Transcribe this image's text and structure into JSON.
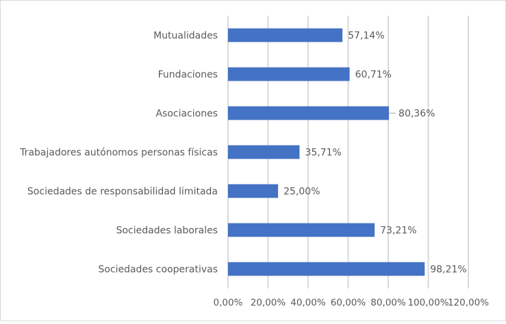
{
  "chart_data": {
    "type": "bar",
    "orientation": "horizontal",
    "title": "",
    "xlabel": "",
    "ylabel": "",
    "categories": [
      "Mutualidades",
      "Fundaciones",
      "Asociaciones",
      "Trabajadores autónomos personas físicas",
      "Sociedades de responsabilidad limitada",
      "Sociedades laborales",
      "Sociedades cooperativas"
    ],
    "values": [
      57.14,
      60.71,
      80.36,
      35.71,
      25.0,
      73.21,
      98.21
    ],
    "data_labels": [
      "57,14%",
      "60,71%",
      "80,36%",
      "35,71%",
      "25,00%",
      "73,21%",
      "98,21%"
    ],
    "xlim": [
      0,
      120
    ],
    "x_ticks": [
      0,
      20,
      40,
      60,
      80,
      100,
      120
    ],
    "x_tick_labels": [
      "0,00%",
      "20,00%",
      "40,00%",
      "60,00%",
      "80,00%",
      "100,00%",
      "120,00%"
    ],
    "grid": "vertical",
    "legend": "none",
    "bar_color": "#4472c4",
    "grid_color": "#d9d9d9",
    "text_color": "#595959"
  }
}
